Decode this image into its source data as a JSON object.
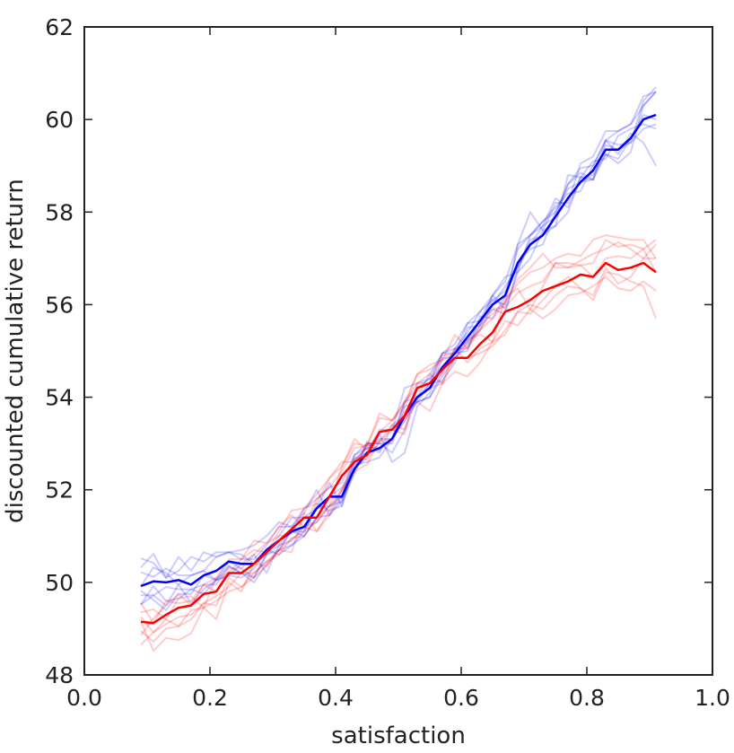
{
  "chart_data": {
    "type": "line",
    "title": "",
    "xlabel": "satisfaction",
    "ylabel": "discounted cumulative return",
    "xlim": [
      0.0,
      1.0
    ],
    "ylim": [
      48,
      62
    ],
    "xticks": [
      0.0,
      0.2,
      0.4,
      0.6,
      0.8,
      1.0
    ],
    "xtick_labels": [
      "0.0",
      "0.2",
      "0.4",
      "0.6",
      "0.8",
      "1.0"
    ],
    "yticks": [
      48,
      50,
      52,
      54,
      56,
      58,
      60,
      62
    ],
    "ytick_labels": [
      "48",
      "50",
      "52",
      "54",
      "56",
      "58",
      "60",
      "62"
    ],
    "grid": false,
    "legend": "none",
    "colors": {
      "blue": "#0000ff",
      "red": "#ff0000",
      "axes": "#222222"
    },
    "series": [
      {
        "color": "#0000ff",
        "style": "mean",
        "x": [
          0.09,
          0.11,
          0.13,
          0.15,
          0.17,
          0.19,
          0.21,
          0.23,
          0.25,
          0.27,
          0.29,
          0.31,
          0.33,
          0.35,
          0.37,
          0.39,
          0.41,
          0.43,
          0.45,
          0.47,
          0.49,
          0.51,
          0.53,
          0.55,
          0.57,
          0.59,
          0.61,
          0.63,
          0.65,
          0.67,
          0.69,
          0.71,
          0.73,
          0.75,
          0.77,
          0.79,
          0.81,
          0.83,
          0.85,
          0.87,
          0.89,
          0.91
        ],
        "y": [
          49.92,
          50.02,
          50.0,
          50.05,
          49.95,
          50.15,
          50.25,
          50.45,
          50.4,
          50.4,
          50.7,
          50.9,
          51.1,
          51.2,
          51.6,
          51.85,
          51.85,
          52.45,
          52.8,
          52.9,
          53.1,
          53.6,
          54.0,
          54.2,
          54.65,
          54.95,
          55.3,
          55.65,
          56.0,
          56.2,
          56.9,
          57.3,
          57.5,
          57.9,
          58.3,
          58.65,
          58.9,
          59.35,
          59.35,
          59.6,
          60.0,
          60.1
        ]
      },
      {
        "color": "#ff0000",
        "style": "mean",
        "x": [
          0.09,
          0.11,
          0.13,
          0.15,
          0.17,
          0.19,
          0.21,
          0.23,
          0.25,
          0.27,
          0.29,
          0.31,
          0.33,
          0.35,
          0.37,
          0.39,
          0.41,
          0.43,
          0.45,
          0.47,
          0.49,
          0.51,
          0.53,
          0.55,
          0.57,
          0.59,
          0.61,
          0.63,
          0.65,
          0.67,
          0.69,
          0.71,
          0.73,
          0.75,
          0.77,
          0.79,
          0.81,
          0.83,
          0.85,
          0.87,
          0.89,
          0.91
        ],
        "y": [
          49.15,
          49.12,
          49.3,
          49.45,
          49.5,
          49.75,
          49.8,
          50.2,
          50.2,
          50.4,
          50.65,
          50.9,
          51.15,
          51.4,
          51.4,
          51.85,
          52.3,
          52.6,
          52.75,
          53.25,
          53.3,
          53.6,
          54.2,
          54.3,
          54.6,
          54.85,
          54.85,
          55.15,
          55.4,
          55.85,
          55.95,
          56.1,
          56.3,
          56.4,
          56.5,
          56.65,
          56.6,
          56.9,
          56.75,
          56.8,
          56.9,
          56.7
        ]
      },
      {
        "color": "#0000ff",
        "style": "run",
        "offsets": [
          0.4,
          0.6,
          0.1,
          0.5,
          0.3,
          0.5,
          0.3,
          0.2,
          0.2,
          0.0,
          -0.1,
          0.1,
          0.3,
          0.2,
          0.0,
          -0.2,
          0.0,
          0.3,
          0.2,
          0.1,
          -0.1,
          0.2,
          -0.1,
          0.1,
          0.3,
          0.2,
          0.3,
          0.0,
          0.2,
          0.3,
          0.4,
          0.2,
          0.3,
          0.1,
          0.3,
          0.3,
          0.1,
          0.2,
          0.4,
          0.3,
          0.5,
          0.5
        ]
      },
      {
        "color": "#0000ff",
        "style": "run",
        "offsets": [
          -0.1,
          -0.4,
          -0.6,
          -0.3,
          -0.2,
          0.0,
          -0.2,
          -0.1,
          -0.2,
          -0.3,
          -0.1,
          -0.1,
          -0.2,
          0.0,
          -0.3,
          -0.2,
          -0.1,
          0.1,
          -0.2,
          -0.2,
          0.0,
          -0.1,
          -0.1,
          -0.2,
          -0.1,
          0.1,
          -0.1,
          -0.2,
          0.0,
          0.2,
          -0.1,
          0.0,
          0.2,
          0.4,
          -0.2,
          0.1,
          -0.2,
          -0.1,
          -0.2,
          0.0,
          0.1,
          -0.1
        ]
      },
      {
        "color": "#0000ff",
        "style": "run",
        "offsets": [
          0.6,
          0.4,
          0.1,
          0.2,
          0.6,
          0.3,
          0.4,
          0.2,
          0.3,
          0.4,
          0.3,
          0.4,
          0.1,
          0.3,
          0.4,
          -0.4,
          0.0,
          0.2,
          0.0,
          0.4,
          0.2,
          0.6,
          0.3,
          0.2,
          0.0,
          0.0,
          0.3,
          0.2,
          0.2,
          0.4,
          -0.2,
          -0.3,
          0.1,
          0.3,
          -0.1,
          0.4,
          0.3,
          0.4,
          0.4,
          0.3,
          0.3,
          0.5
        ]
      },
      {
        "color": "#0000ff",
        "style": "run",
        "offsets": [
          -0.2,
          -0.3,
          -0.1,
          -0.2,
          -0.1,
          -0.2,
          -0.3,
          -0.1,
          -0.2,
          -0.4,
          -0.3,
          -0.2,
          0.0,
          -0.2,
          -0.2,
          0.0,
          0.2,
          0.0,
          0.2,
          0.1,
          -0.3,
          -0.3,
          0.0,
          0.1,
          -0.3,
          -0.2,
          0.2,
          -0.1,
          0.2,
          -0.3,
          -0.2,
          0.2,
          0.3,
          0.2,
          0.1,
          -0.2,
          0.1,
          0.2,
          -0.1,
          0.1,
          -0.5,
          -1.1
        ]
      },
      {
        "color": "#0000ff",
        "style": "run",
        "offsets": [
          0.0,
          0.3,
          0.2,
          -0.1,
          0.2,
          0.1,
          -0.2,
          -0.3,
          0.0,
          0.2,
          -0.5,
          -0.1,
          0.0,
          -0.1,
          0.1,
          -0.3,
          -0.2,
          0.2,
          0.1,
          0.0,
          0.0,
          0.3,
          0.0,
          0.3,
          0.3,
          0.0,
          -0.3,
          0.1,
          -0.3,
          0.0,
          0.3,
          0.2,
          0.2,
          0.0,
          0.3,
          0.2,
          -0.2,
          0.2,
          0.1,
          -0.1,
          0.4,
          0.6
        ]
      },
      {
        "color": "#0000ff",
        "style": "run",
        "offsets": [
          -0.4,
          -0.3,
          -0.5,
          -0.1,
          -0.4,
          -0.3,
          -0.2,
          -0.3,
          -0.3,
          -0.1,
          0.0,
          -0.3,
          -0.3,
          -0.1,
          0.0,
          0.3,
          -0.2,
          0.0,
          -0.1,
          0.3,
          -0.5,
          -0.8,
          -0.2,
          -0.1,
          0.2,
          -0.1,
          -0.2,
          -0.1,
          0.1,
          -0.2,
          0.4,
          0.7,
          0.1,
          -0.2,
          0.5,
          0.1,
          0.2,
          -0.2,
          0.3,
          0.2,
          -0.1,
          -0.3
        ]
      },
      {
        "color": "#0000ff",
        "style": "run",
        "offsets": [
          0.3,
          0.1,
          0.3,
          0.1,
          0.2,
          0.1,
          0.3,
          0.2,
          0.1,
          0.1,
          0.1,
          0.3,
          0.1,
          0.4,
          0.2,
          0.2,
          0.3,
          0.3,
          0.1,
          0.2,
          0.0,
          0.3,
          0.2,
          0.2,
          0.3,
          0.1,
          0.1,
          0.2,
          0.1,
          0.1,
          0.0,
          -0.1,
          -0.2,
          0.1,
          0.2,
          0.0,
          -0.2,
          0.1,
          0.0,
          -0.1,
          -0.2,
          -0.2
        ]
      },
      {
        "color": "#0000ff",
        "style": "run",
        "offsets": [
          -0.4,
          -0.1,
          -0.4,
          -0.4,
          -0.1,
          -0.4,
          -0.2,
          0.0,
          -0.1,
          -0.3,
          -0.1,
          -0.2,
          -0.3,
          -0.2,
          -0.2,
          -0.4,
          -0.1,
          -0.1,
          0.2,
          -0.1,
          0.3,
          0.0,
          -0.1,
          -0.2,
          -0.2,
          -0.1,
          -0.1,
          0.0,
          -0.1,
          -0.4,
          -0.1,
          0.1,
          0.0,
          -0.2,
          -0.3,
          0.1,
          -0.1,
          -0.1,
          -0.3,
          -0.3,
          0.3,
          0.5
        ]
      },
      {
        "color": "#ff0000",
        "style": "run",
        "offsets": [
          0.4,
          0.0,
          0.3,
          0.1,
          0.1,
          0.2,
          0.3,
          0.0,
          0.3,
          0.5,
          0.2,
          0.3,
          0.3,
          -0.2,
          0.4,
          0.2,
          0.1,
          0.3,
          0.2,
          0.3,
          0.2,
          0.2,
          0.3,
          0.3,
          0.2,
          0.5,
          0.2,
          0.4,
          0.4,
          0.2,
          0.6,
          0.7,
          0.8,
          0.4,
          0.3,
          0.3,
          0.5,
          0.3,
          0.6,
          0.4,
          0.1,
          0.3
        ]
      },
      {
        "color": "#ff0000",
        "style": "run",
        "offsets": [
          -0.5,
          -0.2,
          -0.1,
          -0.4,
          -0.1,
          -0.3,
          -0.6,
          -0.2,
          -0.4,
          0.0,
          -0.3,
          -0.2,
          -0.5,
          0.1,
          -0.3,
          -0.3,
          -0.3,
          -0.2,
          0.3,
          -0.4,
          -0.2,
          0.1,
          -0.3,
          -0.6,
          -0.3,
          -0.3,
          -0.4,
          -0.4,
          -0.2,
          -0.2,
          -0.4,
          -0.2,
          -0.6,
          -0.5,
          -0.3,
          -0.4,
          -0.2,
          -0.3,
          -0.4,
          -0.5,
          -0.4,
          -0.4
        ]
      },
      {
        "color": "#ff0000",
        "style": "run",
        "offsets": [
          -0.2,
          -0.4,
          -0.3,
          -0.4,
          -0.3,
          -0.2,
          -0.3,
          -0.1,
          -0.3,
          -0.2,
          -0.2,
          -0.3,
          -0.2,
          -0.4,
          0.0,
          -0.2,
          0.2,
          0.5,
          0.1,
          0.0,
          0.2,
          0.3,
          0.1,
          0.0,
          0.3,
          0.1,
          0.4,
          0.2,
          -0.2,
          0.3,
          0.4,
          -0.2,
          0.1,
          0.5,
          0.3,
          0.2,
          0.0,
          0.1,
          0.3,
          0.2,
          0.3,
          0.7
        ]
      },
      {
        "color": "#ff0000",
        "style": "run",
        "offsets": [
          0.2,
          0.3,
          -0.1,
          0.2,
          0.2,
          -0.3,
          0.3,
          0.3,
          0.3,
          0.3,
          0.0,
          0.2,
          0.4,
          0.2,
          0.5,
          0.4,
          0.3,
          0.0,
          0.2,
          -0.2,
          0.1,
          -0.3,
          0.1,
          0.2,
          -0.3,
          0.2,
          0.2,
          0.3,
          0.5,
          0.1,
          0.3,
          0.3,
          0.2,
          0.5,
          0.4,
          0.2,
          0.3,
          0.5,
          0.5,
          0.5,
          0.3,
          0.0
        ]
      },
      {
        "color": "#ff0000",
        "style": "run",
        "offsets": [
          0.0,
          -0.6,
          -0.5,
          -0.7,
          -0.6,
          -0.3,
          -0.2,
          -0.4,
          -0.3,
          -0.3,
          -0.3,
          -0.2,
          -0.2,
          -0.3,
          -0.1,
          -0.2,
          -0.3,
          0.1,
          -0.1,
          -0.2,
          0.0,
          -0.4,
          0.0,
          0.0,
          -0.1,
          0.2,
          -0.1,
          -0.1,
          -0.2,
          -0.5,
          -0.1,
          -0.1,
          -0.4,
          -0.2,
          -0.1,
          -0.3,
          -0.5,
          -0.2,
          -0.1,
          -0.3,
          -0.5,
          -1.0
        ]
      },
      {
        "color": "#ff0000",
        "style": "run",
        "offsets": [
          -0.3,
          0.1,
          0.2,
          0.3,
          0.0,
          0.2,
          0.0,
          0.1,
          0.1,
          0.2,
          0.2,
          0.1,
          -0.1,
          0.2,
          0.3,
          0.4,
          0.2,
          0.4,
          0.2,
          0.4,
          0.2,
          0.3,
          0.3,
          0.4,
          0.2,
          0.1,
          0.3,
          0.3,
          0.3,
          0.2,
          0.5,
          0.6,
          0.5,
          0.6,
          0.6,
          0.4,
          0.8,
          0.6,
          0.7,
          0.6,
          0.5,
          0.3
        ]
      },
      {
        "color": "#ff0000",
        "style": "run",
        "offsets": [
          0.1,
          -0.2,
          -0.2,
          -0.2,
          -0.2,
          -0.2,
          -0.1,
          -0.3,
          0.0,
          -0.2,
          -0.2,
          -0.2,
          0.0,
          -0.2,
          -0.3,
          -0.4,
          -0.3,
          -0.2,
          -0.2,
          -0.2,
          -0.2,
          -0.1,
          -0.2,
          -0.1,
          -0.3,
          0.0,
          0.0,
          -0.2,
          -0.3,
          -0.4,
          -0.1,
          -0.3,
          -0.2,
          0.0,
          0.1,
          -0.3,
          -0.4,
          -0.1,
          -0.3,
          -0.2,
          0.1,
          0.6
        ]
      }
    ]
  }
}
